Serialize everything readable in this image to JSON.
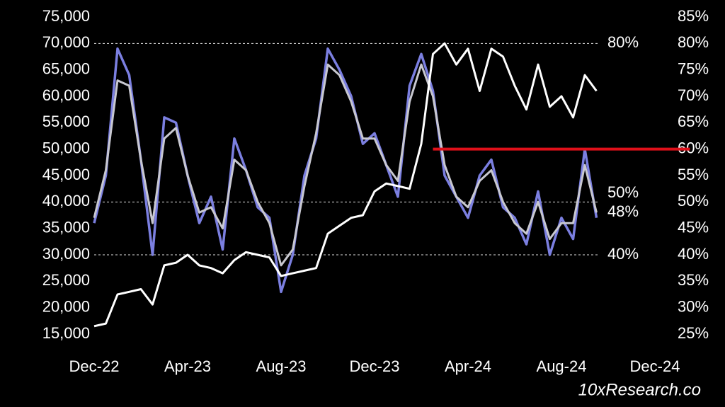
{
  "chart_data": {
    "type": "line",
    "x": [
      0,
      0.5,
      1,
      1.5,
      2,
      2.5,
      3,
      3.5,
      4,
      4.5,
      5,
      5.5,
      6,
      6.5,
      7,
      7.5,
      8,
      8.5,
      9,
      9.5,
      10,
      10.5,
      11,
      11.5,
      12,
      12.5,
      13,
      13.5,
      14,
      14.5,
      15,
      15.5,
      16,
      16.5,
      17,
      17.5,
      18,
      18.5,
      19,
      19.5,
      20,
      20.5,
      21,
      21.5
    ],
    "xlim": [
      0,
      24
    ],
    "xticks": [
      {
        "value": 0,
        "label": "Dec-22"
      },
      {
        "value": 4,
        "label": "Apr-23"
      },
      {
        "value": 8,
        "label": "Aug-23"
      },
      {
        "value": 12,
        "label": "Dec-23"
      },
      {
        "value": 16,
        "label": "Apr-24"
      },
      {
        "value": 20,
        "label": "Aug-24"
      },
      {
        "value": 24,
        "label": "Dec-24"
      }
    ],
    "ylim": [
      15000,
      75000
    ],
    "yticks": [
      {
        "value": 15000,
        "label": "15,000"
      },
      {
        "value": 20000,
        "label": "20,000"
      },
      {
        "value": 25000,
        "label": "25,000"
      },
      {
        "value": 30000,
        "label": "30,000"
      },
      {
        "value": 35000,
        "label": "35,000"
      },
      {
        "value": 40000,
        "label": "40,000"
      },
      {
        "value": 45000,
        "label": "45,000"
      },
      {
        "value": 50000,
        "label": "50,000"
      },
      {
        "value": 55000,
        "label": "55,000"
      },
      {
        "value": 60000,
        "label": "60,000"
      },
      {
        "value": 65000,
        "label": "65,000"
      },
      {
        "value": 70000,
        "label": "70,000"
      },
      {
        "value": 75000,
        "label": "75,000"
      }
    ],
    "y2lim": [
      25,
      85
    ],
    "y2ticks": [
      {
        "value": 25,
        "label": "25%"
      },
      {
        "value": 30,
        "label": "30%"
      },
      {
        "value": 35,
        "label": "35%"
      },
      {
        "value": 40,
        "label": "40%"
      },
      {
        "value": 45,
        "label": "45%"
      },
      {
        "value": 50,
        "label": "50%"
      },
      {
        "value": 55,
        "label": "55%"
      },
      {
        "value": 60,
        "label": "60%"
      },
      {
        "value": 65,
        "label": "65%"
      },
      {
        "value": 70,
        "label": "70%"
      },
      {
        "value": 75,
        "label": "75%"
      },
      {
        "value": 80,
        "label": "80%"
      },
      {
        "value": 85,
        "label": "85%"
      }
    ],
    "series": [
      {
        "color": "#7b7fe0",
        "axis": "y2",
        "width": 3.5,
        "values": [
          46,
          55,
          79,
          74,
          58,
          40,
          66,
          65,
          55,
          46,
          51,
          41,
          62,
          56,
          49,
          47,
          33,
          40,
          55,
          62,
          79,
          75,
          70,
          61,
          63,
          57,
          51,
          72,
          78,
          71,
          55,
          51,
          47,
          55,
          58,
          49,
          47,
          42,
          52,
          40,
          47,
          43,
          60,
          47
        ]
      },
      {
        "color": "#c8c8d0",
        "axis": "y2",
        "width": 3,
        "values": [
          47,
          56,
          73,
          72,
          58,
          46,
          62,
          64,
          55,
          48,
          49,
          45,
          58,
          56,
          50,
          46,
          38,
          41,
          53,
          63,
          76,
          74,
          69,
          62,
          62,
          57,
          54,
          69,
          76,
          70,
          57,
          51,
          49,
          54,
          56,
          50,
          46,
          44,
          50,
          43,
          46,
          46,
          57,
          48
        ]
      },
      {
        "color": "#ffffff",
        "width": 3,
        "values": [
          16500,
          17000,
          22500,
          23000,
          23500,
          20600,
          28000,
          28500,
          30000,
          28000,
          27500,
          26500,
          29000,
          30500,
          30000,
          29500,
          26000,
          26500,
          27000,
          27500,
          34000,
          35500,
          37000,
          37500,
          42000,
          43500,
          43000,
          42500,
          51000,
          68000,
          70000,
          66000,
          69000,
          61000,
          69000,
          67500,
          62000,
          57500,
          66000,
          58000,
          60000,
          56000,
          64000,
          61000
        ]
      }
    ],
    "annotations": [
      {
        "value": 80,
        "label": "80%",
        "dashed": true
      },
      {
        "value": 50,
        "label": "50%",
        "dashed": true
      },
      {
        "value": 48,
        "label": "48%",
        "dashed": false
      },
      {
        "value": 40,
        "label": "40%",
        "dashed": true
      }
    ],
    "reference_line": {
      "value": 60,
      "from": 14.5,
      "to": 25.5,
      "color": "#e0101a"
    },
    "source": "10xResearch.co"
  }
}
